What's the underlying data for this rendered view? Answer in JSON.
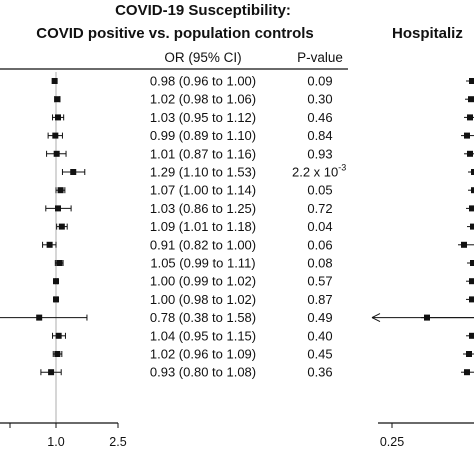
{
  "chart_data": [
    {
      "type": "forest",
      "title": "COVID-19 Susceptibility:",
      "subtitle": "COVID positive vs. population controls",
      "columns": [
        "OR (95% CI)",
        "P-value"
      ],
      "xscale": "log",
      "xticks": [
        "1.0",
        "2.5"
      ],
      "reference_line": 1.0,
      "rows": [
        {
          "or": 0.98,
          "lo": 0.96,
          "hi": 1.0,
          "label": "0.98 (0.96 to 1.00)",
          "p": "0.09"
        },
        {
          "or": 1.02,
          "lo": 0.98,
          "hi": 1.06,
          "label": "1.02 (0.98 to 1.06)",
          "p": "0.30"
        },
        {
          "or": 1.03,
          "lo": 0.95,
          "hi": 1.12,
          "label": "1.03 (0.95 to 1.12)",
          "p": "0.46"
        },
        {
          "or": 0.99,
          "lo": 0.89,
          "hi": 1.1,
          "label": "0.99 (0.89 to 1.10)",
          "p": "0.84"
        },
        {
          "or": 1.01,
          "lo": 0.87,
          "hi": 1.16,
          "label": "1.01 (0.87 to 1.16)",
          "p": "0.93"
        },
        {
          "or": 1.29,
          "lo": 1.1,
          "hi": 1.53,
          "label": "1.29 (1.10 to 1.53)",
          "p": "2.2 x 10",
          "p_sup": "-3"
        },
        {
          "or": 1.07,
          "lo": 1.0,
          "hi": 1.14,
          "label": "1.07 (1.00 to 1.14)",
          "p": "0.05"
        },
        {
          "or": 1.03,
          "lo": 0.86,
          "hi": 1.25,
          "label": "1.03 (0.86 to 1.25)",
          "p": "0.72"
        },
        {
          "or": 1.09,
          "lo": 1.01,
          "hi": 1.18,
          "label": "1.09 (1.01 to 1.18)",
          "p": "0.04"
        },
        {
          "or": 0.91,
          "lo": 0.82,
          "hi": 1.0,
          "label": "0.91 (0.82 to 1.00)",
          "p": "0.06"
        },
        {
          "or": 1.05,
          "lo": 0.99,
          "hi": 1.11,
          "label": "1.05 (0.99 to 1.11)",
          "p": "0.08"
        },
        {
          "or": 1.0,
          "lo": 0.99,
          "hi": 1.02,
          "label": "1.00 (0.99 to 1.02)",
          "p": "0.57"
        },
        {
          "or": 1.0,
          "lo": 0.98,
          "hi": 1.02,
          "label": "1.00 (0.98 to 1.02)",
          "p": "0.87"
        },
        {
          "or": 0.78,
          "lo": 0.38,
          "hi": 1.58,
          "label": "0.78 (0.38 to 1.58)",
          "p": "0.49"
        },
        {
          "or": 1.04,
          "lo": 0.95,
          "hi": 1.15,
          "label": "1.04 (0.95 to 1.15)",
          "p": "0.40"
        },
        {
          "or": 1.02,
          "lo": 0.96,
          "hi": 1.09,
          "label": "1.02 (0.96 to 1.09)",
          "p": "0.45"
        },
        {
          "or": 0.93,
          "lo": 0.8,
          "hi": 1.08,
          "label": "0.93 (0.80 to 1.08)",
          "p": "0.36"
        }
      ]
    },
    {
      "type": "forest",
      "title": "Hospitaliz",
      "xscale": "log",
      "xticks": [
        "0.25"
      ],
      "partial": true
    }
  ]
}
